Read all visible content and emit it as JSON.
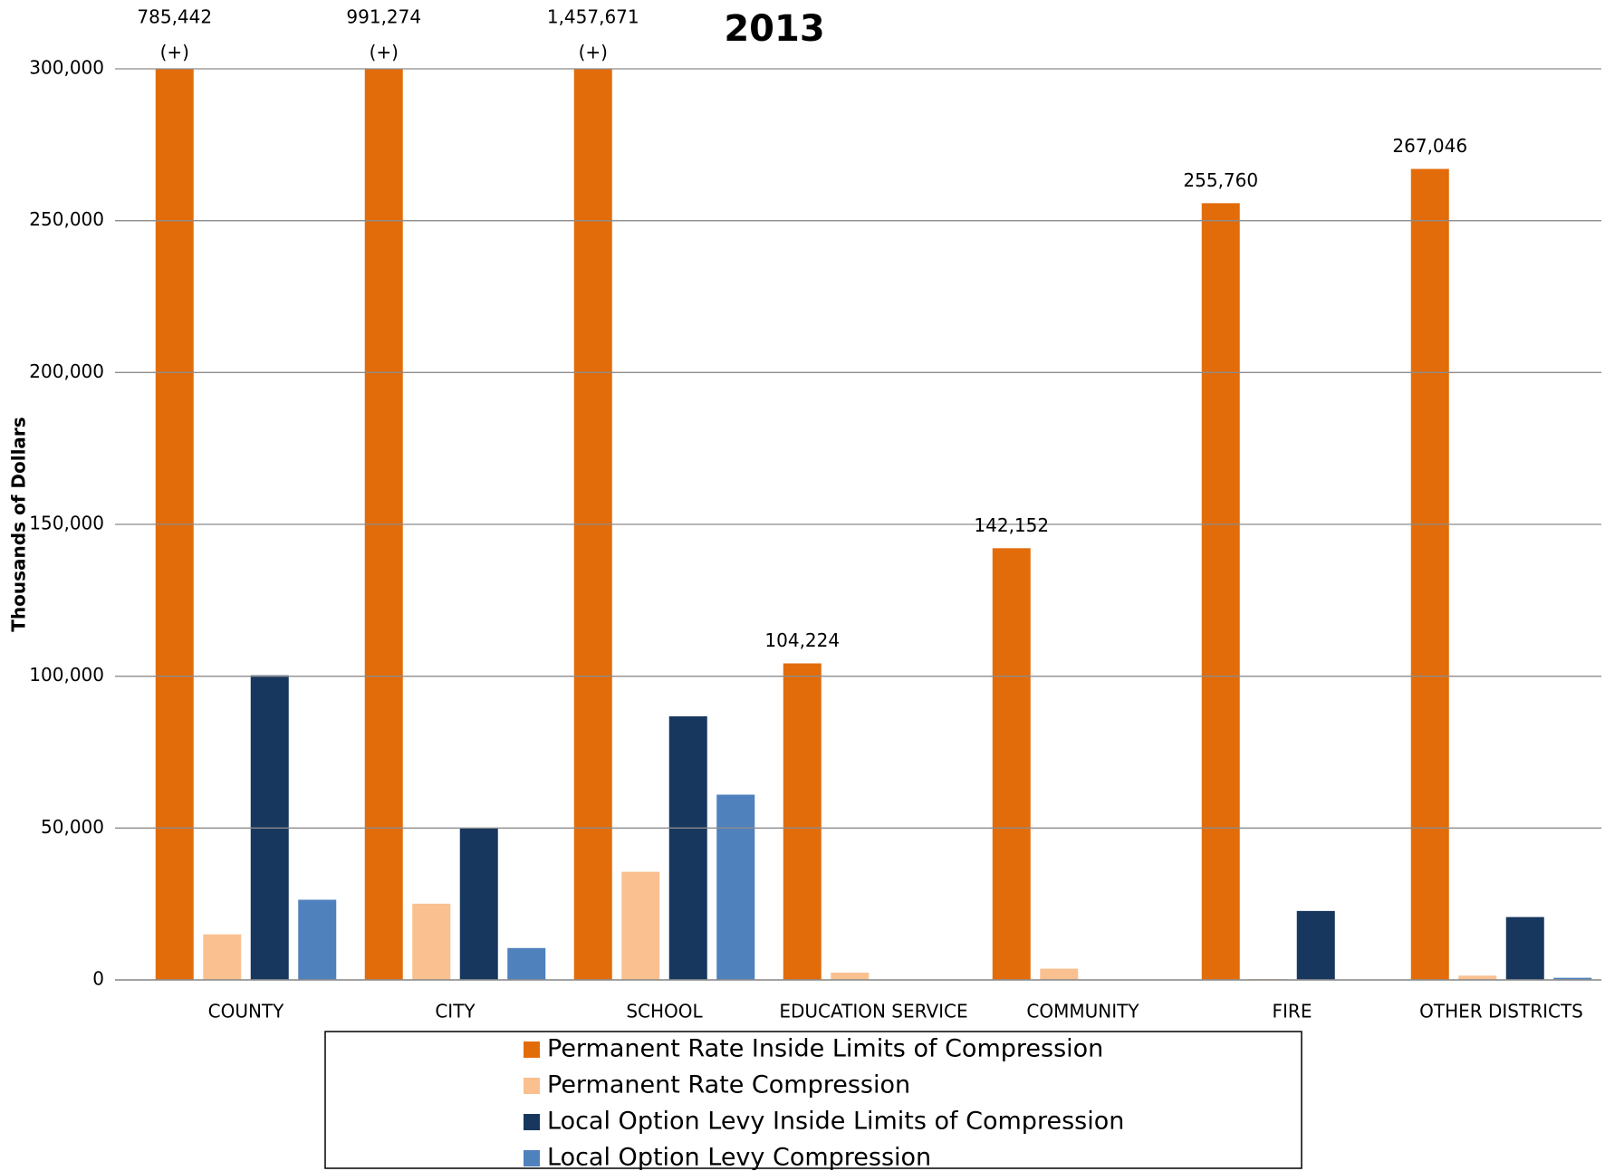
{
  "chart_data": {
    "type": "bar",
    "title": "2013",
    "y_label": "Thousands of Dollars",
    "categories": [
      "COUNTY",
      "CITY",
      "SCHOOL",
      "EDUCATION SERVICE",
      "COMMUNITY",
      "FIRE",
      "OTHER DISTRICTS"
    ],
    "series": [
      {
        "name": "Permanent Rate Inside Limits of Compression",
        "color": "#e36c0a",
        "values": [
          785442,
          991274,
          1457671,
          104224,
          142152,
          255760,
          267046
        ],
        "value_labels": [
          "785,442",
          "991,274",
          "1,457,671",
          "104,224",
          "142,152",
          "255,760",
          "267,046"
        ]
      },
      {
        "name": "Permanent Rate Compression",
        "color": "#fac090",
        "values": [
          15000,
          25100,
          35600,
          2400,
          3700,
          300,
          1400
        ]
      },
      {
        "name": "Local Option Levy Inside Limits of Compression",
        "color": "#17375e",
        "values": [
          100300,
          49800,
          86800,
          0,
          0,
          22700,
          20700
        ]
      },
      {
        "name": "Local Option Levy Compression",
        "color": "#4f81bd",
        "values": [
          26400,
          10500,
          61000,
          0,
          0,
          0,
          700
        ]
      }
    ],
    "annotations": [
      "(+)",
      "(+)",
      "(+)"
    ],
    "ylim": [
      0,
      300000
    ],
    "yticks": [
      0,
      {
        "value": 50000,
        "label": "50,000"
      },
      {
        "value": 100000,
        "label": "100,000"
      },
      {
        "value": 150000,
        "label": "150,000"
      },
      {
        "value": 200000,
        "label": "200,000"
      },
      {
        "value": 250000,
        "label": "250,000"
      },
      {
        "value": 300000,
        "label": "300,000"
      }
    ],
    "grid": true,
    "legend": "bottom"
  }
}
